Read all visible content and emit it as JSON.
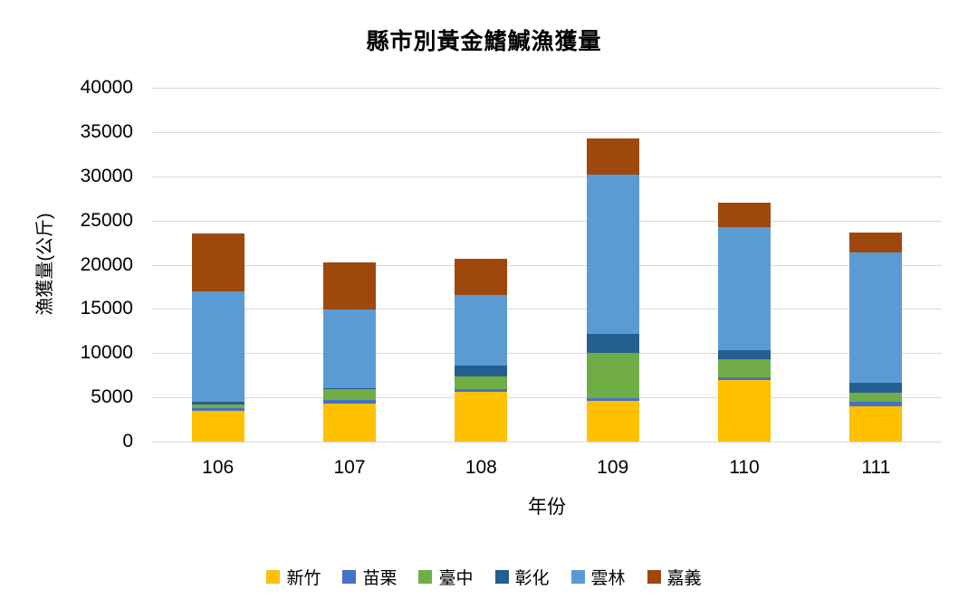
{
  "chart_data": {
    "type": "bar",
    "stacked": true,
    "title": "縣市別黃金鰭鰔漁獲量",
    "xlabel": "年份",
    "ylabel": "漁獲量(公斤)",
    "ylim": [
      0,
      40000
    ],
    "ytick_step": 5000,
    "yticks": [
      "0",
      "5000",
      "10000",
      "15000",
      "20000",
      "25000",
      "30000",
      "35000",
      "40000"
    ],
    "categories": [
      "106",
      "107",
      "108",
      "109",
      "110",
      "111"
    ],
    "series": [
      {
        "name": "新竹",
        "color": "#FFC000",
        "values": [
          3500,
          4300,
          5600,
          4600,
          7000,
          4000
        ]
      },
      {
        "name": "苗栗",
        "color": "#4472C4",
        "values": [
          300,
          400,
          300,
          300,
          300,
          500
        ]
      },
      {
        "name": "臺中",
        "color": "#70AD47",
        "values": [
          400,
          1200,
          1500,
          5100,
          2000,
          1000
        ]
      },
      {
        "name": "彰化",
        "color": "#255E91",
        "values": [
          300,
          100,
          1200,
          2200,
          1000,
          1200
        ]
      },
      {
        "name": "雲林",
        "color": "#5B9BD5",
        "values": [
          12500,
          8900,
          8000,
          18000,
          13900,
          14700
        ]
      },
      {
        "name": "嘉義",
        "color": "#9E480E",
        "values": [
          6500,
          5400,
          4100,
          4100,
          2800,
          2200
        ]
      }
    ],
    "totals": [
      23500,
      20300,
      20700,
      34300,
      27000,
      23600
    ],
    "legend_position": "bottom",
    "grid": true
  },
  "colors": {
    "gridline": "#d9d9d9",
    "axis_line": "#d9d9d9",
    "text": "#000000",
    "background": "#ffffff"
  }
}
